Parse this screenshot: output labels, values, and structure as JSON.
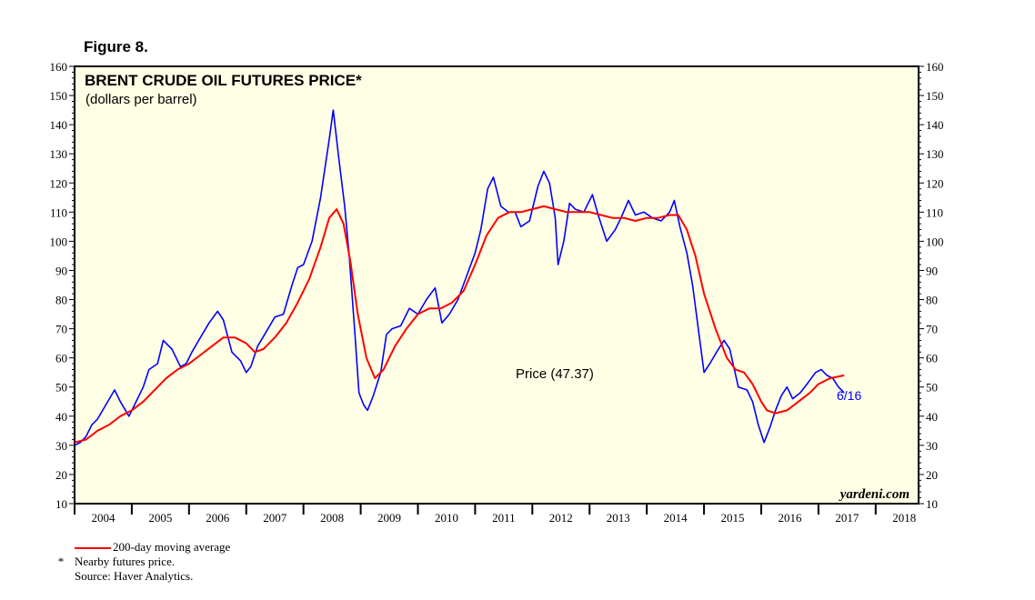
{
  "figure_label": "Figure 8.",
  "footnotes": {
    "ma_label": "200-day moving average",
    "star": "*",
    "nearby": "Nearby futures price.",
    "source": "Source: Haver Analytics."
  },
  "colors": {
    "price": "#0000ff",
    "ma": "#ff0000",
    "plot_bg": "#ffffe6",
    "axis": "#000000"
  },
  "chart_data": {
    "type": "line",
    "title": "BRENT CRUDE OIL FUTURES PRICE*",
    "subtitle": "(dollars per barrel)",
    "xlabel": "",
    "ylabel": "",
    "x_range": [
      2004.0,
      2018.75
    ],
    "ylim": [
      10,
      160
    ],
    "y_ticks": [
      10,
      20,
      30,
      40,
      50,
      60,
      70,
      80,
      90,
      100,
      110,
      120,
      130,
      140,
      150,
      160
    ],
    "x_tick_labels": [
      "2004",
      "2005",
      "2006",
      "2007",
      "2008",
      "2009",
      "2010",
      "2011",
      "2012",
      "2013",
      "2014",
      "2015",
      "2016",
      "2017",
      "2018"
    ],
    "grid": false,
    "watermark": "yardeni.com",
    "annotations": {
      "price_label": "Price (47.37)",
      "date_label": "6/16"
    },
    "series": [
      {
        "name": "Price",
        "points": [
          [
            2004.0,
            30
          ],
          [
            2004.1,
            31
          ],
          [
            2004.2,
            33
          ],
          [
            2004.3,
            37
          ],
          [
            2004.4,
            39
          ],
          [
            2004.55,
            44
          ],
          [
            2004.7,
            49
          ],
          [
            2004.8,
            45
          ],
          [
            2004.95,
            40
          ],
          [
            2005.05,
            44
          ],
          [
            2005.2,
            50
          ],
          [
            2005.3,
            56
          ],
          [
            2005.45,
            58
          ],
          [
            2005.55,
            66
          ],
          [
            2005.7,
            63
          ],
          [
            2005.85,
            57
          ],
          [
            2005.95,
            58
          ],
          [
            2006.05,
            62
          ],
          [
            2006.2,
            67
          ],
          [
            2006.35,
            72
          ],
          [
            2006.5,
            76
          ],
          [
            2006.6,
            73
          ],
          [
            2006.75,
            62
          ],
          [
            2006.9,
            59
          ],
          [
            2007.0,
            55
          ],
          [
            2007.08,
            57
          ],
          [
            2007.2,
            64
          ],
          [
            2007.35,
            69
          ],
          [
            2007.5,
            74
          ],
          [
            2007.65,
            75
          ],
          [
            2007.8,
            85
          ],
          [
            2007.9,
            91
          ],
          [
            2008.0,
            92
          ],
          [
            2008.15,
            100
          ],
          [
            2008.3,
            115
          ],
          [
            2008.45,
            135
          ],
          [
            2008.52,
            145
          ],
          [
            2008.62,
            128
          ],
          [
            2008.72,
            112
          ],
          [
            2008.8,
            95
          ],
          [
            2008.9,
            68
          ],
          [
            2008.97,
            48
          ],
          [
            2009.05,
            44
          ],
          [
            2009.12,
            42
          ],
          [
            2009.22,
            47
          ],
          [
            2009.35,
            55
          ],
          [
            2009.45,
            68
          ],
          [
            2009.55,
            70
          ],
          [
            2009.7,
            71
          ],
          [
            2009.85,
            77
          ],
          [
            2010.0,
            75
          ],
          [
            2010.15,
            80
          ],
          [
            2010.3,
            84
          ],
          [
            2010.42,
            72
          ],
          [
            2010.55,
            75
          ],
          [
            2010.7,
            80
          ],
          [
            2010.85,
            88
          ],
          [
            2011.0,
            96
          ],
          [
            2011.1,
            104
          ],
          [
            2011.22,
            118
          ],
          [
            2011.32,
            122
          ],
          [
            2011.45,
            112
          ],
          [
            2011.58,
            110
          ],
          [
            2011.7,
            110
          ],
          [
            2011.8,
            105
          ],
          [
            2011.95,
            107
          ],
          [
            2012.1,
            119
          ],
          [
            2012.2,
            124
          ],
          [
            2012.3,
            120
          ],
          [
            2012.4,
            108
          ],
          [
            2012.45,
            92
          ],
          [
            2012.55,
            100
          ],
          [
            2012.65,
            113
          ],
          [
            2012.75,
            111
          ],
          [
            2012.9,
            110
          ],
          [
            2013.05,
            116
          ],
          [
            2013.15,
            109
          ],
          [
            2013.3,
            100
          ],
          [
            2013.45,
            104
          ],
          [
            2013.55,
            108
          ],
          [
            2013.68,
            114
          ],
          [
            2013.8,
            109
          ],
          [
            2013.95,
            110
          ],
          [
            2014.1,
            108
          ],
          [
            2014.25,
            107
          ],
          [
            2014.4,
            110
          ],
          [
            2014.48,
            114
          ],
          [
            2014.58,
            105
          ],
          [
            2014.7,
            96
          ],
          [
            2014.8,
            85
          ],
          [
            2014.9,
            70
          ],
          [
            2015.0,
            55
          ],
          [
            2015.1,
            58
          ],
          [
            2015.22,
            62
          ],
          [
            2015.35,
            66
          ],
          [
            2015.45,
            63
          ],
          [
            2015.6,
            50
          ],
          [
            2015.75,
            49
          ],
          [
            2015.85,
            45
          ],
          [
            2015.95,
            37
          ],
          [
            2016.05,
            31
          ],
          [
            2016.15,
            36
          ],
          [
            2016.25,
            42
          ],
          [
            2016.35,
            47
          ],
          [
            2016.45,
            50
          ],
          [
            2016.55,
            46
          ],
          [
            2016.68,
            48
          ],
          [
            2016.8,
            51
          ],
          [
            2016.95,
            55
          ],
          [
            2017.05,
            56
          ],
          [
            2017.15,
            54
          ],
          [
            2017.25,
            53
          ],
          [
            2017.35,
            50
          ],
          [
            2017.45,
            48
          ]
        ]
      },
      {
        "name": "200-day moving average",
        "points": [
          [
            2004.0,
            31
          ],
          [
            2004.2,
            32
          ],
          [
            2004.4,
            35
          ],
          [
            2004.6,
            37
          ],
          [
            2004.8,
            40
          ],
          [
            2005.0,
            42
          ],
          [
            2005.2,
            45
          ],
          [
            2005.4,
            49
          ],
          [
            2005.6,
            53
          ],
          [
            2005.8,
            56
          ],
          [
            2006.0,
            58
          ],
          [
            2006.2,
            61
          ],
          [
            2006.4,
            64
          ],
          [
            2006.6,
            67
          ],
          [
            2006.8,
            67
          ],
          [
            2007.0,
            65
          ],
          [
            2007.15,
            62
          ],
          [
            2007.3,
            63
          ],
          [
            2007.5,
            67
          ],
          [
            2007.7,
            72
          ],
          [
            2007.9,
            79
          ],
          [
            2008.1,
            87
          ],
          [
            2008.3,
            98
          ],
          [
            2008.45,
            108
          ],
          [
            2008.58,
            111
          ],
          [
            2008.7,
            106
          ],
          [
            2008.82,
            93
          ],
          [
            2008.95,
            75
          ],
          [
            2009.1,
            60
          ],
          [
            2009.25,
            53
          ],
          [
            2009.4,
            56
          ],
          [
            2009.6,
            64
          ],
          [
            2009.8,
            70
          ],
          [
            2010.0,
            75
          ],
          [
            2010.2,
            77
          ],
          [
            2010.4,
            77
          ],
          [
            2010.6,
            79
          ],
          [
            2010.8,
            83
          ],
          [
            2011.0,
            92
          ],
          [
            2011.2,
            102
          ],
          [
            2011.4,
            108
          ],
          [
            2011.6,
            110
          ],
          [
            2011.8,
            110
          ],
          [
            2012.0,
            111
          ],
          [
            2012.2,
            112
          ],
          [
            2012.4,
            111
          ],
          [
            2012.6,
            110
          ],
          [
            2012.8,
            110
          ],
          [
            2013.0,
            110
          ],
          [
            2013.2,
            109
          ],
          [
            2013.4,
            108
          ],
          [
            2013.6,
            108
          ],
          [
            2013.8,
            107
          ],
          [
            2014.0,
            108
          ],
          [
            2014.2,
            108
          ],
          [
            2014.4,
            109
          ],
          [
            2014.55,
            109
          ],
          [
            2014.7,
            104
          ],
          [
            2014.85,
            95
          ],
          [
            2015.0,
            82
          ],
          [
            2015.2,
            70
          ],
          [
            2015.4,
            60
          ],
          [
            2015.55,
            56
          ],
          [
            2015.7,
            55
          ],
          [
            2015.85,
            51
          ],
          [
            2016.0,
            45
          ],
          [
            2016.1,
            42
          ],
          [
            2016.25,
            41
          ],
          [
            2016.45,
            42
          ],
          [
            2016.65,
            45
          ],
          [
            2016.85,
            48
          ],
          [
            2017.0,
            51
          ],
          [
            2017.2,
            53
          ],
          [
            2017.45,
            54
          ]
        ]
      }
    ]
  }
}
